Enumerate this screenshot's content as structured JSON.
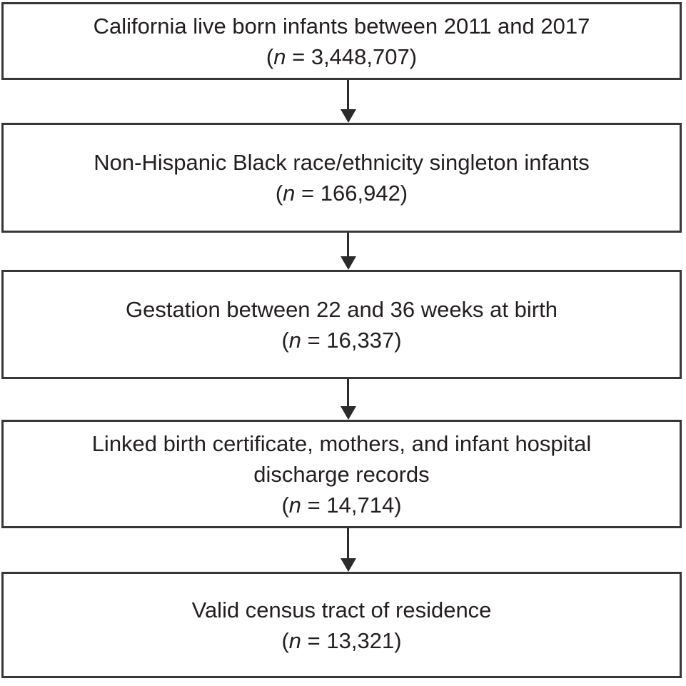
{
  "figure": {
    "type": "cohort-selection-flowchart",
    "colors": {
      "border": "#373737",
      "text": "#231f20",
      "arrow": "#2b2b2b",
      "background": "#ffffff"
    },
    "steps": [
      {
        "label": "California live born infants between 2011 and 2017",
        "paren_open": "(",
        "n_symbol": "n",
        "count_rest": " = 3,448,707)"
      },
      {
        "label": "Non-Hispanic Black race/ethnicity singleton infants",
        "paren_open": "(",
        "n_symbol": "n",
        "count_rest": " = 166,942)"
      },
      {
        "label": "Gestation between 22 and 36 weeks at birth",
        "paren_open": "(",
        "n_symbol": "n",
        "count_rest": " = 16,337)"
      },
      {
        "label": "Linked birth certificate, mothers, and infant hospital\ndischarge records",
        "paren_open": "(",
        "n_symbol": "n",
        "count_rest": " = 14,714)"
      },
      {
        "label": "Valid census tract of residence",
        "paren_open": "(",
        "n_symbol": "n",
        "count_rest": " = 13,321)"
      }
    ]
  }
}
